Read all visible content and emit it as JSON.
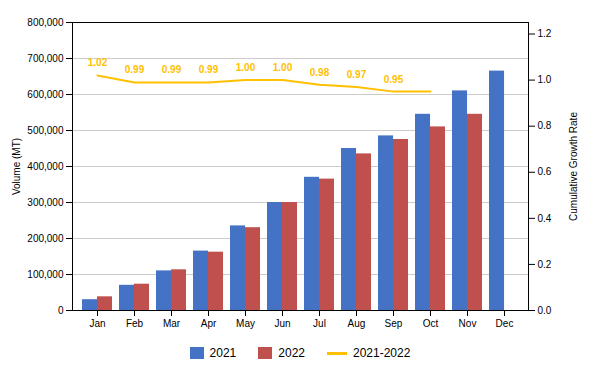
{
  "chart_data": {
    "type": "bar",
    "categories": [
      "Jan",
      "Feb",
      "Mar",
      "Apr",
      "May",
      "Jun",
      "Jul",
      "Aug",
      "Sep",
      "Oct",
      "Nov",
      "Dec"
    ],
    "series": [
      {
        "name": "2021",
        "color": "#4472C4",
        "values": [
          30000,
          70000,
          110000,
          165000,
          235000,
          300000,
          370000,
          450000,
          485000,
          545000,
          610000,
          665000
        ]
      },
      {
        "name": "2022",
        "color": "#C0504D",
        "values": [
          38000,
          73000,
          113000,
          162000,
          230000,
          300000,
          365000,
          435000,
          475000,
          510000,
          545000,
          null
        ]
      },
      {
        "name": "2021-2022",
        "color": "#FFC000",
        "type": "line",
        "axis": "y2",
        "values": [
          1.02,
          0.99,
          0.99,
          0.99,
          1.0,
          1.0,
          0.98,
          0.97,
          0.95,
          0.95,
          null,
          null
        ]
      }
    ],
    "ylabel": "Volume (MT)",
    "y2label": "Cumulative Growth Rate",
    "ylim": [
      0,
      800000
    ],
    "yticks": [
      0,
      {
        "value": 100000,
        "label": "100,000"
      },
      {
        "value": 200000,
        "label": "200,000"
      },
      {
        "value": 300000,
        "label": "300,000"
      },
      {
        "value": 400000,
        "label": "400,000"
      },
      {
        "value": 500000,
        "label": "500,000"
      },
      {
        "value": 600000,
        "label": "600,000"
      },
      {
        "value": 700000,
        "label": "700,000"
      },
      {
        "value": 800000,
        "label": "800,000"
      }
    ],
    "y2lim": [
      0.0,
      1.25
    ],
    "y2ticks": [
      {
        "value": 0,
        "label": "0.0"
      },
      0.2,
      0.4,
      0.6,
      0.8,
      {
        "value": 1,
        "label": "1.0"
      },
      1.2
    ],
    "annotations": [
      {
        "x": "Jan",
        "y": 1.02,
        "text": "1.02"
      },
      {
        "x": "Feb",
        "y": 0.99,
        "text": "0.99"
      },
      {
        "x": "Mar",
        "y": 0.99,
        "text": "0.99"
      },
      {
        "x": "Apr",
        "y": 0.99,
        "text": "0.99"
      },
      {
        "x": "May",
        "y": 1.0,
        "text": "1.00"
      },
      {
        "x": "Jun",
        "y": 1.0,
        "text": "1.00"
      },
      {
        "x": "Jul",
        "y": 0.98,
        "text": "0.98"
      },
      {
        "x": "Aug",
        "y": 0.97,
        "text": "0.97"
      },
      {
        "x": "Sep",
        "y": 0.95,
        "text": "0.95"
      }
    ],
    "grid": true,
    "legend": "bottom"
  }
}
